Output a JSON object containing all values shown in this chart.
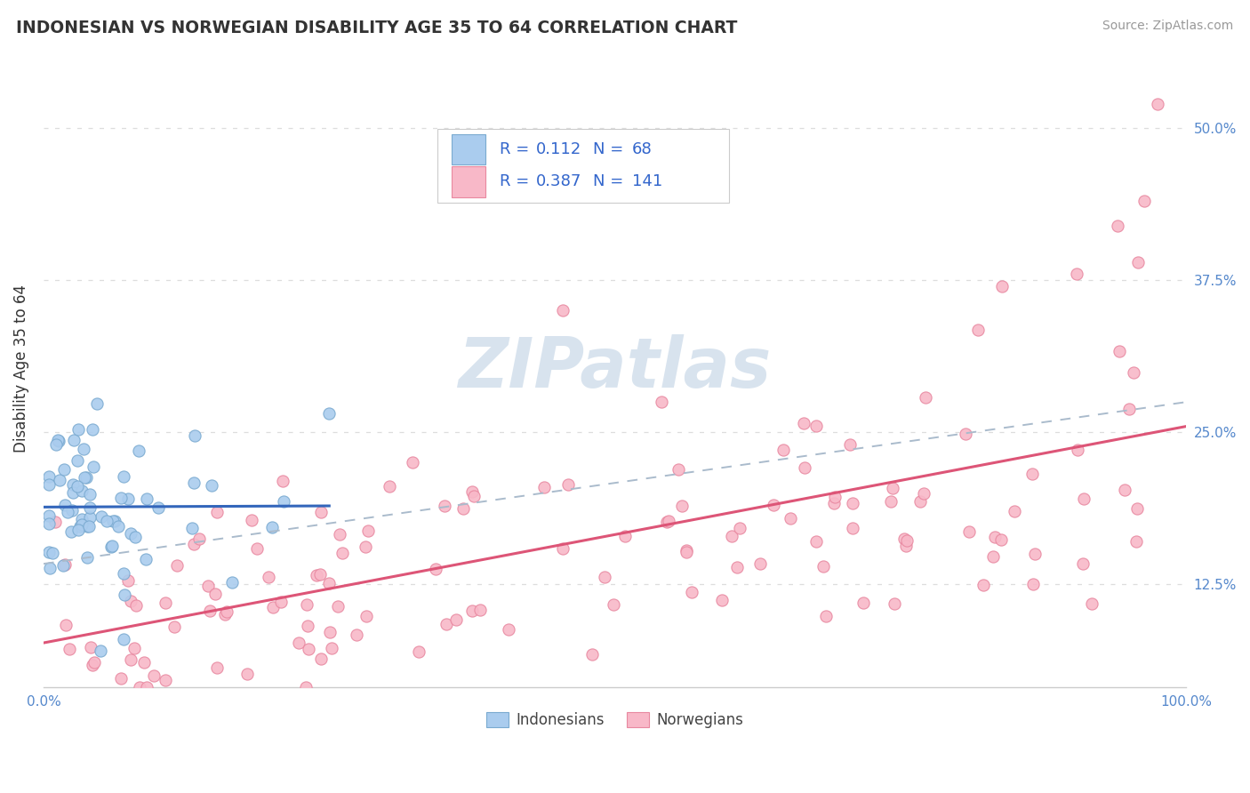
{
  "title": "INDONESIAN VS NORWEGIAN DISABILITY AGE 35 TO 64 CORRELATION CHART",
  "source": "Source: ZipAtlas.com",
  "ylabel": "Disability Age 35 to 64",
  "legend_r_blue": "0.112",
  "legend_n_blue": "68",
  "legend_r_pink": "0.387",
  "legend_n_pink": "141",
  "blue_scatter_face": "#aaccee",
  "blue_scatter_edge": "#7aaad0",
  "pink_scatter_face": "#f8b8c8",
  "pink_scatter_edge": "#e888a0",
  "blue_line_color": "#3366bb",
  "pink_line_color": "#dd5577",
  "dashed_line_color": "#aabbcc",
  "background_color": "#ffffff",
  "grid_color": "#dddddd",
  "watermark_color": "#c8d8e8",
  "legend_text_color": "#3366cc",
  "title_color": "#333333",
  "axis_label_color": "#333333",
  "tick_color": "#5588cc",
  "xlim": [
    0.0,
    1.0
  ],
  "ylim": [
    0.04,
    0.565
  ],
  "yticks": [
    0.125,
    0.25,
    0.375,
    0.5
  ],
  "ytick_labels": [
    "12.5%",
    "25.0%",
    "37.5%",
    "50.0%"
  ]
}
